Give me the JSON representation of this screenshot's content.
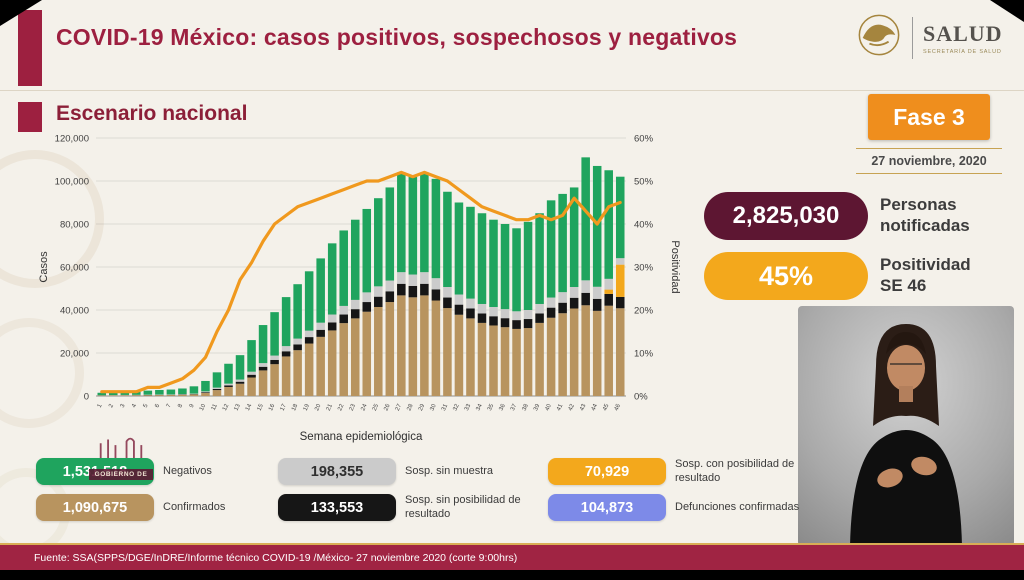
{
  "header": {
    "title": "COVID-19 México: casos positivos, sospechosos y negativos",
    "logo_title": "SALUD",
    "logo_subtitle": "SECRETARÍA DE SALUD"
  },
  "section_title": "Escenario nacional",
  "right_panel": {
    "phase_label": "Fase 3",
    "date": "27 noviembre, 2020",
    "notified_value": "2,825,030",
    "notified_label": "Personas notificadas",
    "positivity_value": "45%",
    "positivity_label": "Positividad SE 46"
  },
  "watermark": {
    "banner": "GOBIERNO DE"
  },
  "colors": {
    "guinda": "#9d2040",
    "dark_maroon_pill": "#5d1632",
    "orange": "#ef8e1d",
    "line_orange": "#f0991e",
    "footer_red": "#a02443"
  },
  "chart_data": {
    "type": "bar",
    "stacked": true,
    "title": "Escenario nacional",
    "xlabel": "Semana epidemiológica",
    "ylabel_left": "Casos",
    "ylabel_right": "Positividad",
    "ylim_left": [
      0,
      120000
    ],
    "ylim_right": [
      0,
      60
    ],
    "yticks_left": [
      "0",
      "20,000",
      "40,000",
      "60,000",
      "80,000",
      "100,000",
      "120,000"
    ],
    "yticks_right": [
      "0%",
      "10%",
      "20%",
      "30%",
      "40%",
      "50%",
      "60%"
    ],
    "grid": "horizontal",
    "legend_position": "bottom",
    "categories": [
      1,
      2,
      3,
      4,
      5,
      6,
      7,
      8,
      9,
      10,
      11,
      12,
      13,
      14,
      15,
      16,
      17,
      18,
      19,
      20,
      21,
      22,
      23,
      24,
      25,
      26,
      27,
      28,
      29,
      30,
      31,
      32,
      33,
      34,
      35,
      36,
      37,
      38,
      39,
      40,
      41,
      42,
      43,
      44,
      45,
      46
    ],
    "series": [
      {
        "name": "Confirmados",
        "color": "#b8945f",
        "values": [
          200,
          250,
          300,
          330,
          380,
          420,
          450,
          550,
          700,
          1400,
          2750,
          4200,
          5700,
          8600,
          11900,
          14800,
          18400,
          21300,
          24400,
          27500,
          30500,
          33900,
          36100,
          39200,
          41400,
          43700,
          46800,
          45900,
          46800,
          44400,
          40900,
          37800,
          36100,
          34000,
          32800,
          32000,
          31200,
          31600,
          34000,
          36400,
          38500,
          40700,
          42200,
          39600,
          42000,
          40800
        ]
      },
      {
        "name": "Sosp. sin posibilidad de resultado",
        "color": "#161616",
        "values": [
          50,
          60,
          70,
          80,
          90,
          100,
          110,
          130,
          170,
          350,
          550,
          750,
          950,
          1300,
          1700,
          2000,
          2400,
          2700,
          3000,
          3300,
          3700,
          4000,
          4300,
          4500,
          4800,
          5000,
          5400,
          5300,
          5400,
          5200,
          4900,
          4700,
          4600,
          4400,
          4300,
          4200,
          4100,
          4200,
          4400,
          4700,
          4900,
          5000,
          5800,
          5600,
          5500,
          5300
        ]
      },
      {
        "name": "Sosp. con posibilidad de resultado",
        "color": "#f3a81c",
        "values": [
          0,
          0,
          0,
          0,
          0,
          0,
          0,
          0,
          0,
          0,
          0,
          0,
          0,
          0,
          0,
          0,
          0,
          0,
          0,
          0,
          0,
          0,
          0,
          0,
          0,
          0,
          0,
          0,
          0,
          0,
          0,
          0,
          0,
          0,
          0,
          0,
          0,
          0,
          0,
          0,
          0,
          0,
          0,
          0,
          2000,
          15000
        ]
      },
      {
        "name": "Sosp. sin muestra",
        "color": "#cbcbcb",
        "values": [
          100,
          120,
          130,
          140,
          150,
          170,
          180,
          200,
          250,
          400,
          600,
          800,
          1000,
          1400,
          1700,
          2000,
          2400,
          2700,
          3000,
          3300,
          3700,
          4000,
          4300,
          4500,
          4800,
          5000,
          5400,
          5300,
          5400,
          5200,
          4900,
          4700,
          4600,
          4400,
          4300,
          4200,
          4100,
          4200,
          4400,
          4700,
          4900,
          5000,
          5800,
          5600,
          5000,
          3000
        ]
      },
      {
        "name": "Negativos",
        "color": "#1fa45e",
        "values": [
          1150,
          1370,
          1500,
          1650,
          1880,
          2110,
          2260,
          2620,
          3380,
          4850,
          7100,
          9250,
          11350,
          14700,
          17700,
          20200,
          22800,
          25300,
          27600,
          29900,
          33100,
          35100,
          37300,
          38800,
          41000,
          43300,
          46400,
          45500,
          46400,
          46200,
          44300,
          42800,
          42700,
          42200,
          40600,
          39600,
          38600,
          41000,
          42200,
          45200,
          45700,
          46300,
          57200,
          56200,
          50500,
          37900
        ]
      }
    ],
    "line": {
      "name": "Positividad",
      "color": "#f0991e",
      "values": [
        1,
        1,
        1,
        1,
        2,
        2,
        3,
        4,
        6,
        9,
        15,
        20,
        27,
        31,
        36,
        40,
        42,
        44,
        45,
        46,
        47,
        48,
        49,
        50,
        50,
        51,
        52,
        51,
        52,
        51,
        50,
        48,
        46,
        44,
        43,
        42,
        41,
        41,
        42,
        41,
        42,
        46,
        43,
        40,
        44,
        45
      ]
    }
  },
  "legend": {
    "items": [
      {
        "value": "1,531,518",
        "label": "Negativos",
        "color": "#1fa45e",
        "text_color": "#ffffff"
      },
      {
        "value": "198,355",
        "label": "Sosp. sin muestra",
        "color": "#cbcbcb",
        "text_color": "#2f2f2f"
      },
      {
        "value": "70,929",
        "label": "Sosp. con posibilidad de resultado",
        "color": "#f3a81c",
        "text_color": "#ffffff"
      },
      {
        "value": "1,090,675",
        "label": "Confirmados",
        "color": "#b8945f",
        "text_color": "#ffffff"
      },
      {
        "value": "133,553",
        "label": "Sosp. sin posibilidad de resultado",
        "color": "#161616",
        "text_color": "#ffffff"
      },
      {
        "value": "104,873",
        "label": "Defunciones confirmadas",
        "color": "#7d8ae8",
        "text_color": "#ffffff"
      }
    ]
  },
  "footer": {
    "source": "Fuente: SSA(SPPS/DGE/InDRE/Informe técnico COVID-19 /México- 27 noviembre 2020 (corte 9:00hrs)"
  }
}
